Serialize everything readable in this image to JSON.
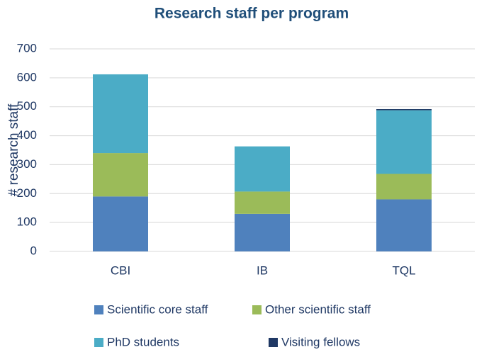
{
  "chart_data": {
    "type": "stacked_bar",
    "title": "Research staff per program",
    "y_label": "# research staff",
    "categories": [
      "CBI",
      "IB",
      "TQL"
    ],
    "series": [
      {
        "name": "Scientific core staff",
        "color": "#4f81bd",
        "values": [
          190,
          130,
          180
        ]
      },
      {
        "name": "Other scientific staff",
        "color": "#9bbb59",
        "values": [
          150,
          77,
          88
        ]
      },
      {
        "name": "PhD students",
        "color": "#4bacc6",
        "values": [
          272,
          156,
          220
        ]
      },
      {
        "name": "Visiting fellows",
        "color": "#1f3864",
        "values": [
          0,
          0,
          4
        ]
      }
    ],
    "ylim": [
      0,
      700
    ],
    "yticks": [
      0,
      100,
      200,
      300,
      400,
      500,
      600,
      700
    ],
    "grid": true,
    "legend": "bottom"
  }
}
